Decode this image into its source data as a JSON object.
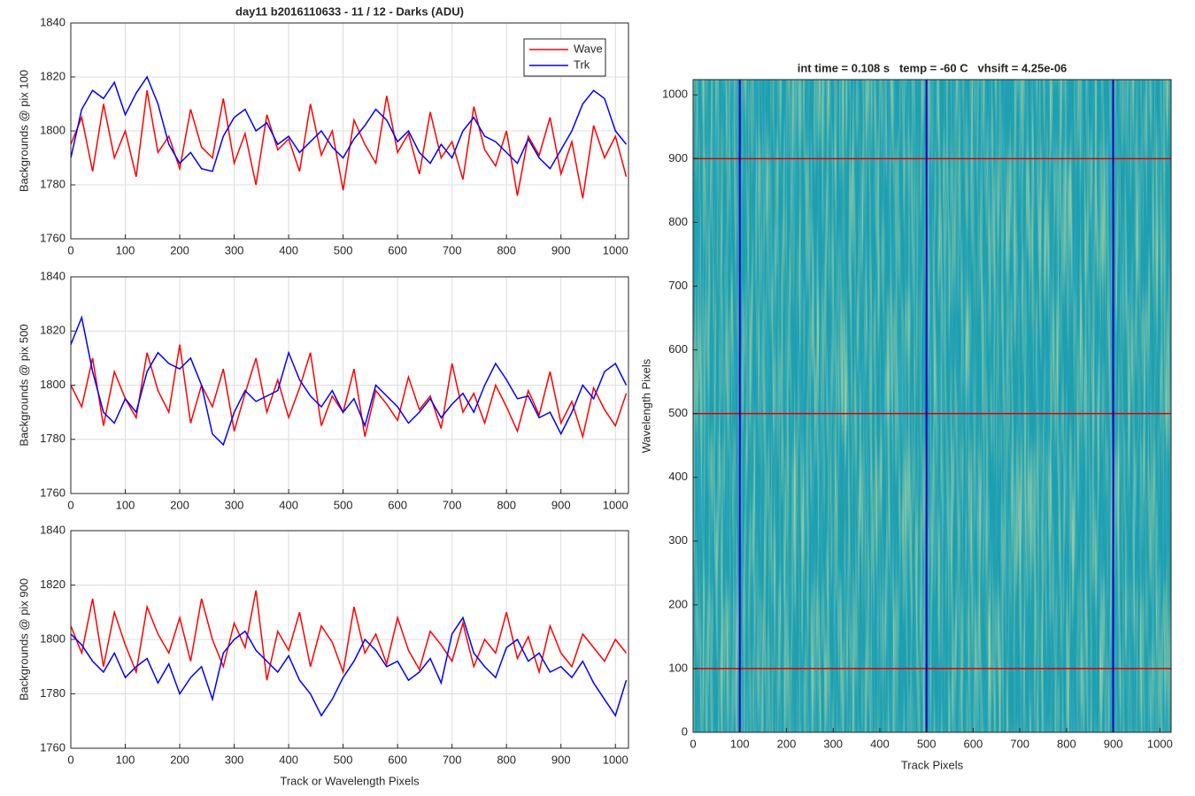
{
  "chart_data": [
    {
      "type": "line",
      "title": "day11 b2016110633 - 11 / 12 - Darks (ADU)",
      "y_label": "Backgrounds @ pix 100",
      "x": [
        0,
        20,
        40,
        60,
        80,
        100,
        120,
        140,
        160,
        180,
        200,
        220,
        240,
        260,
        280,
        300,
        320,
        340,
        360,
        380,
        400,
        420,
        440,
        460,
        480,
        500,
        520,
        540,
        560,
        580,
        600,
        620,
        640,
        660,
        680,
        700,
        720,
        740,
        760,
        780,
        800,
        820,
        840,
        860,
        880,
        900,
        920,
        940,
        960,
        980,
        1000,
        1020
      ],
      "series": [
        {
          "name": "Wave",
          "color": "#ff0000",
          "values": [
            1795,
            1805,
            1785,
            1810,
            1790,
            1800,
            1783,
            1815,
            1792,
            1798,
            1786,
            1808,
            1794,
            1790,
            1812,
            1788,
            1799,
            1780,
            1806,
            1793,
            1797,
            1785,
            1810,
            1791,
            1800,
            1778,
            1804,
            1795,
            1788,
            1813,
            1792,
            1799,
            1784,
            1807,
            1790,
            1796,
            1782,
            1809,
            1793,
            1787,
            1800,
            1776,
            1798,
            1791,
            1805,
            1784,
            1796,
            1775,
            1802,
            1790,
            1798,
            1783
          ]
        },
        {
          "name": "Trk",
          "color": "#0000ff",
          "values": [
            1790,
            1808,
            1815,
            1812,
            1818,
            1806,
            1814,
            1820,
            1810,
            1795,
            1788,
            1792,
            1786,
            1785,
            1798,
            1805,
            1808,
            1800,
            1803,
            1795,
            1798,
            1792,
            1796,
            1800,
            1794,
            1790,
            1797,
            1802,
            1808,
            1804,
            1796,
            1800,
            1792,
            1788,
            1795,
            1790,
            1800,
            1805,
            1798,
            1796,
            1792,
            1788,
            1797,
            1790,
            1786,
            1793,
            1800,
            1810,
            1815,
            1812,
            1800,
            1795
          ]
        }
      ],
      "xlim": [
        0,
        1024
      ],
      "xticks": [
        0,
        100,
        200,
        300,
        400,
        500,
        600,
        700,
        800,
        900,
        1000
      ],
      "ylim": [
        1760,
        1840
      ],
      "yticks": [
        1760,
        1780,
        1800,
        1820,
        1840
      ],
      "grid": true,
      "legend": "northeast"
    },
    {
      "type": "line",
      "y_label": "Backgrounds @ pix 500",
      "x": [
        0,
        20,
        40,
        60,
        80,
        100,
        120,
        140,
        160,
        180,
        200,
        220,
        240,
        260,
        280,
        300,
        320,
        340,
        360,
        380,
        400,
        420,
        440,
        460,
        480,
        500,
        520,
        540,
        560,
        580,
        600,
        620,
        640,
        660,
        680,
        700,
        720,
        740,
        760,
        780,
        800,
        820,
        840,
        860,
        880,
        900,
        920,
        940,
        960,
        980,
        1000,
        1020
      ],
      "series": [
        {
          "name": "Wave",
          "color": "#ff0000",
          "values": [
            1800,
            1792,
            1810,
            1785,
            1805,
            1795,
            1788,
            1812,
            1798,
            1790,
            1815,
            1786,
            1800,
            1792,
            1806,
            1783,
            1797,
            1810,
            1790,
            1802,
            1788,
            1799,
            1812,
            1785,
            1796,
            1790,
            1806,
            1781,
            1798,
            1793,
            1787,
            1803,
            1791,
            1796,
            1784,
            1808,
            1790,
            1797,
            1786,
            1800,
            1792,
            1783,
            1798,
            1789,
            1805,
            1786,
            1794,
            1781,
            1799,
            1791,
            1785,
            1797
          ]
        },
        {
          "name": "Trk",
          "color": "#0000ff",
          "values": [
            1815,
            1825,
            1805,
            1790,
            1786,
            1795,
            1790,
            1805,
            1812,
            1808,
            1806,
            1810,
            1800,
            1782,
            1778,
            1790,
            1798,
            1794,
            1796,
            1798,
            1812,
            1802,
            1796,
            1792,
            1798,
            1790,
            1795,
            1785,
            1800,
            1796,
            1792,
            1786,
            1790,
            1795,
            1788,
            1793,
            1797,
            1790,
            1800,
            1808,
            1802,
            1795,
            1796,
            1788,
            1790,
            1782,
            1790,
            1800,
            1795,
            1805,
            1808,
            1800
          ]
        }
      ],
      "xlim": [
        0,
        1024
      ],
      "xticks": [
        0,
        100,
        200,
        300,
        400,
        500,
        600,
        700,
        800,
        900,
        1000
      ],
      "ylim": [
        1760,
        1840
      ],
      "yticks": [
        1760,
        1780,
        1800,
        1820,
        1840
      ],
      "grid": true
    },
    {
      "type": "line",
      "y_label": "Backgrounds @ pix 900",
      "x_label": "Track or Wavelength Pixels",
      "x": [
        0,
        20,
        40,
        60,
        80,
        100,
        120,
        140,
        160,
        180,
        200,
        220,
        240,
        260,
        280,
        300,
        320,
        340,
        360,
        380,
        400,
        420,
        440,
        460,
        480,
        500,
        520,
        540,
        560,
        580,
        600,
        620,
        640,
        660,
        680,
        700,
        720,
        740,
        760,
        780,
        800,
        820,
        840,
        860,
        880,
        900,
        920,
        940,
        960,
        980,
        1000,
        1020
      ],
      "series": [
        {
          "name": "Wave",
          "color": "#ff0000",
          "values": [
            1805,
            1795,
            1815,
            1790,
            1810,
            1798,
            1788,
            1812,
            1802,
            1795,
            1808,
            1792,
            1815,
            1800,
            1790,
            1806,
            1797,
            1818,
            1785,
            1803,
            1796,
            1810,
            1790,
            1805,
            1799,
            1788,
            1812,
            1795,
            1802,
            1791,
            1808,
            1796,
            1789,
            1803,
            1798,
            1792,
            1806,
            1790,
            1800,
            1795,
            1810,
            1793,
            1801,
            1788,
            1805,
            1795,
            1790,
            1802,
            1797,
            1792,
            1800,
            1795
          ]
        },
        {
          "name": "Trk",
          "color": "#0000ff",
          "values": [
            1802,
            1798,
            1792,
            1788,
            1795,
            1786,
            1790,
            1793,
            1784,
            1791,
            1780,
            1786,
            1790,
            1778,
            1795,
            1800,
            1803,
            1796,
            1792,
            1788,
            1794,
            1785,
            1780,
            1772,
            1778,
            1786,
            1792,
            1800,
            1796,
            1790,
            1792,
            1785,
            1788,
            1793,
            1784,
            1802,
            1808,
            1795,
            1790,
            1786,
            1797,
            1800,
            1792,
            1795,
            1788,
            1790,
            1786,
            1792,
            1784,
            1778,
            1772,
            1785
          ]
        }
      ],
      "xlim": [
        0,
        1024
      ],
      "xticks": [
        0,
        100,
        200,
        300,
        400,
        500,
        600,
        700,
        800,
        900,
        1000
      ],
      "ylim": [
        1760,
        1840
      ],
      "yticks": [
        1760,
        1780,
        1800,
        1820,
        1840
      ],
      "grid": true
    },
    {
      "type": "image",
      "title": "int time = 0.108 s   temp = -60 C   vhsift = 4.25e-06",
      "x_label": "Track Pixels",
      "y_label": "Wavelength Pixels",
      "color": "#1e9fb0",
      "xlim": [
        0,
        1024
      ],
      "xticks": [
        0,
        100,
        200,
        300,
        400,
        500,
        600,
        700,
        800,
        900,
        1000
      ],
      "ylim": [
        0,
        1024
      ],
      "yticks": [
        0,
        100,
        200,
        300,
        400,
        500,
        600,
        700,
        800,
        900,
        1000
      ],
      "hlines": {
        "color": "#e00000",
        "values": [
          100,
          500,
          900
        ]
      },
      "vlines": {
        "color": "#0000cc",
        "values": [
          100,
          500,
          900
        ]
      }
    }
  ]
}
